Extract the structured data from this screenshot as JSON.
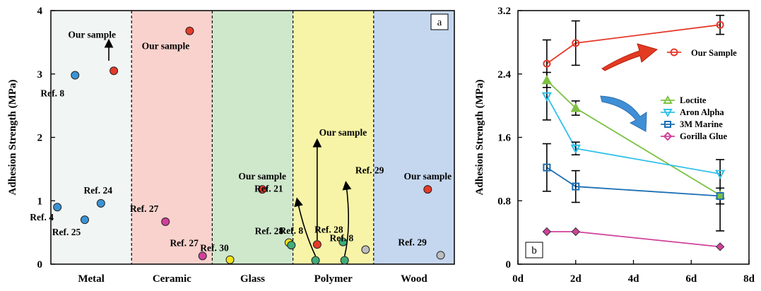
{
  "chart_data": [
    {
      "type": "scatter",
      "panel_label": "a",
      "ylabel": "Adhesion Strength (MPa)",
      "ylim": [
        0,
        4
      ],
      "yticks": [
        "0",
        "1",
        "2",
        "3",
        "4"
      ],
      "categories": [
        "Metal",
        "Ceramic",
        "Glass",
        "Polymer",
        "Wood"
      ],
      "region_colors": [
        "#f1f5f3",
        "#f9d2cd",
        "#cfe8cc",
        "#f7f4a8",
        "#c5d7ef"
      ],
      "points": [
        {
          "category": "Metal",
          "offset": -0.42,
          "value": 0.9,
          "label": "Ref. 4",
          "color": "#3b93d3"
        },
        {
          "category": "Metal",
          "offset": -0.08,
          "value": 0.7,
          "label": "Ref. 25",
          "color": "#3b93d3"
        },
        {
          "category": "Metal",
          "offset": 0.12,
          "value": 0.96,
          "label": "Ref. 24",
          "color": "#3b93d3"
        },
        {
          "category": "Metal",
          "offset": -0.2,
          "value": 2.98,
          "label": "Ref. 8",
          "color": "#3b93d3"
        },
        {
          "category": "Metal",
          "offset": 0.28,
          "value": 3.05,
          "label": "Our sample",
          "color": "#e53a2a"
        },
        {
          "category": "Ceramic",
          "offset": 0.22,
          "value": 3.68,
          "label": "Our sample",
          "color": "#e53a2a"
        },
        {
          "category": "Ceramic",
          "offset": -0.08,
          "value": 0.67,
          "label": "Ref. 27",
          "color": "#d0409a"
        },
        {
          "category": "Ceramic",
          "offset": 0.38,
          "value": 0.13,
          "label": "Ref. 27",
          "color": "#d0409a"
        },
        {
          "category": "Glass",
          "offset": 0.12,
          "value": 1.18,
          "label": "Our sample",
          "color": "#e53a2a"
        },
        {
          "category": "Glass",
          "offset": -0.28,
          "value": 0.07,
          "label": "Ref. 30",
          "color": "#f2e21a"
        },
        {
          "category": "Glass",
          "offset": 0.45,
          "value": 0.34,
          "label": "Ref. 28",
          "color": "#f2e21a"
        },
        {
          "category": "Polymer",
          "offset": -0.52,
          "value": 0.3,
          "label": "Ref. 8",
          "color": "#3fae7a"
        },
        {
          "category": "Polymer",
          "offset": 0.12,
          "value": 0.35,
          "label": "Ref. 28",
          "color": "#3fae7a"
        },
        {
          "category": "Polymer",
          "offset": -0.22,
          "value": 0.06,
          "label": "",
          "color": "#3fae7a"
        },
        {
          "category": "Polymer",
          "offset": 0.14,
          "value": 0.06,
          "label": "",
          "color": "#3fae7a"
        },
        {
          "category": "Polymer",
          "offset": -0.2,
          "value": 0.31,
          "label": "",
          "color": "#e53a2a"
        },
        {
          "category": "Wood",
          "offset": 0.17,
          "value": 1.18,
          "label": "Our sample",
          "color": "#e53a2a"
        },
        {
          "category": "Wood",
          "offset": -0.6,
          "value": 0.23,
          "label": "Ref. 8",
          "color": "#bdbdbd"
        },
        {
          "category": "Wood",
          "offset": 0.33,
          "value": 0.14,
          "label": "Ref. 29",
          "color": "#bdbdbd"
        }
      ],
      "annotations": [
        {
          "text": "Our sample",
          "category": "Metal",
          "offset": 0.01,
          "value": 3.57
        },
        {
          "text": "Our sample",
          "category": "Polymer",
          "offset": 0.12,
          "value": 2.03
        },
        {
          "text": "Ref. 21",
          "category": "Polymer",
          "offset": -0.8,
          "value": 1.14
        },
        {
          "text": "Ref. 29",
          "category": "Polymer",
          "offset": 0.45,
          "value": 1.43
        }
      ]
    },
    {
      "type": "line",
      "panel_label": "b",
      "ylabel": "Adhesion Strength (MPa)",
      "xlim": [
        0,
        8
      ],
      "ylim": [
        0,
        3.2
      ],
      "xticks": [
        "0d",
        "2d",
        "4d",
        "6d",
        "8d"
      ],
      "yticks": [
        "0",
        "0.8",
        "1.6",
        "2.4",
        "3.2"
      ],
      "legend_placement": "right",
      "series": [
        {
          "name": "Our Sample",
          "marker": "circle",
          "color": "#e53a2a",
          "x": [
            1,
            2,
            7
          ],
          "y": [
            2.53,
            2.79,
            3.02
          ],
          "err": [
            0.3,
            0.28,
            0.12
          ]
        },
        {
          "name": "Loctite",
          "marker": "triangle-up",
          "color": "#7cc242",
          "x": [
            1,
            2,
            7
          ],
          "y": [
            2.32,
            1.97,
            0.87
          ],
          "err": [
            0,
            0.09,
            0.45
          ]
        },
        {
          "name": "Aron Alpha",
          "marker": "triangle-down",
          "color": "#2fc0e8",
          "x": [
            1,
            2,
            7
          ],
          "y": [
            2.12,
            1.46,
            1.14
          ],
          "err": [
            0.3,
            0.08,
            0
          ]
        },
        {
          "name": "3M Marine",
          "marker": "square",
          "color": "#1c6fb3",
          "x": [
            1,
            2,
            7
          ],
          "y": [
            1.22,
            0.98,
            0.86
          ],
          "err": [
            0.3,
            0.2,
            0.1
          ]
        },
        {
          "name": "Gorilla Glue",
          "marker": "diamond",
          "color": "#d0409a",
          "x": [
            1,
            2,
            7
          ],
          "y": [
            0.41,
            0.41,
            0.22
          ],
          "err": [
            0,
            0,
            0
          ]
        }
      ]
    }
  ]
}
